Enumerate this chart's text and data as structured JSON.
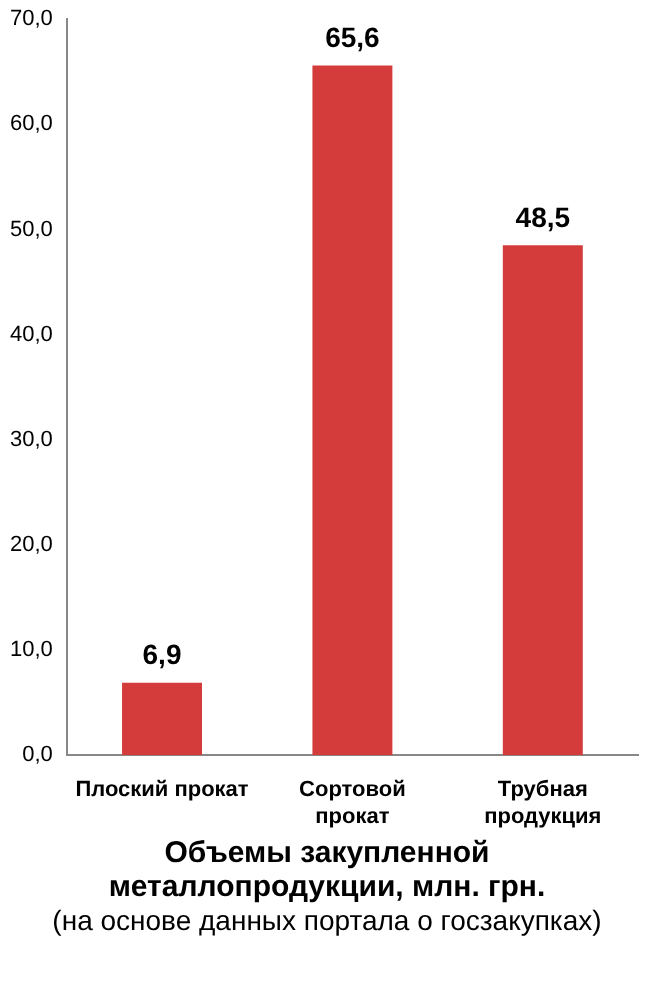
{
  "chart_data": {
    "type": "bar",
    "title": "Объемы закупленной металлопродукции, млн. грн.",
    "annotations": [
      "(на основе данных портала о госзакупках)"
    ],
    "categories": [
      "Плоский прокат",
      "Сортовой прокат",
      "Трубная продукция"
    ],
    "values": [
      6.9,
      65.6,
      48.5
    ],
    "color": "#d43c3c",
    "value_labels": [
      "6,9",
      "65,6",
      "48,5"
    ],
    "ylim": [
      0,
      70
    ],
    "yticks": [
      {
        "value": 0,
        "label": "0,0"
      },
      {
        "value": 10,
        "label": "10,0"
      },
      {
        "value": 20,
        "label": "20,0"
      },
      {
        "value": 30,
        "label": "30,0"
      },
      {
        "value": 40,
        "label": "40,0"
      },
      {
        "value": 50,
        "label": "50,0"
      },
      {
        "value": 60,
        "label": "60,0"
      },
      {
        "value": 70,
        "label": "70,0"
      }
    ],
    "grid": false,
    "legend": false
  }
}
